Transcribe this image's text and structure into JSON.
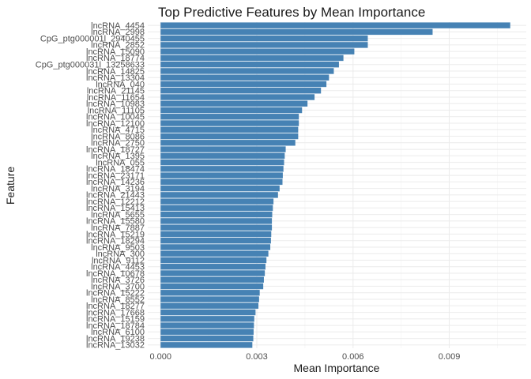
{
  "chart_data": {
    "type": "bar",
    "orientation": "horizontal",
    "title": "Top Predictive Features by Mean Importance",
    "xlabel": "Mean Importance",
    "ylabel": "Feature",
    "xlim": [
      -0.0004,
      0.0114
    ],
    "xticks": [
      0,
      0.003,
      0.006,
      0.009
    ],
    "xtick_labels": [
      "0.000",
      "0.003",
      "0.006",
      "0.009"
    ],
    "grid": true,
    "bar_color": "#4682B4",
    "categories": [
      "lncRNA_4454",
      "lncRNA_2998",
      "CpG_ptg000001l_2940455",
      "lncRNA_2852",
      "lncRNA_15090",
      "lncRNA_18774",
      "CpG_ptg000031l_13258633",
      "lncRNA_14825",
      "lncRNA_13304",
      "lncRNA_040",
      "lncRNA_21145",
      "lncRNA_11654",
      "lncRNA_10983",
      "lncRNA_11105",
      "lncRNA_10045",
      "lncRNA_12100",
      "lncRNA_4715",
      "lncRNA_8086",
      "lncRNA_2750",
      "lncRNA_18727",
      "lncRNA_1395",
      "lncRNA_055",
      "lncRNA_18474",
      "lncRNA_23171",
      "lncRNA_14236",
      "lncRNA_3194",
      "lncRNA_21443",
      "lncRNA_12212",
      "lncRNA_15413",
      "lncRNA_5655",
      "lncRNA_15580",
      "lncRNA_7887",
      "lncRNA_15219",
      "lncRNA_18294",
      "lncRNA_9503",
      "lncRNA_300",
      "lncRNA_9112",
      "lncRNA_4453",
      "lncRNA_10678",
      "lncRNA_3726",
      "lncRNA_3700",
      "lncRNA_15222",
      "lncRNA_8552",
      "lncRNA_18277",
      "lncRNA_17668",
      "lncRNA_15159",
      "lncRNA_18784",
      "lncRNA_6100",
      "lncRNA_19238",
      "lncRNA_13032"
    ],
    "values": [
      0.0109,
      0.00848,
      0.00646,
      0.00646,
      0.00604,
      0.0057,
      0.00556,
      0.0054,
      0.00525,
      0.00517,
      0.005,
      0.0048,
      0.00458,
      0.00441,
      0.00431,
      0.00431,
      0.00429,
      0.00429,
      0.0042,
      0.0039,
      0.00387,
      0.00385,
      0.00383,
      0.00381,
      0.0038,
      0.00371,
      0.00366,
      0.00352,
      0.0035,
      0.00348,
      0.00347,
      0.00347,
      0.00345,
      0.00344,
      0.00342,
      0.00336,
      0.0033,
      0.00327,
      0.00325,
      0.00322,
      0.0032,
      0.00309,
      0.00307,
      0.00305,
      0.00296,
      0.00292,
      0.00291,
      0.0029,
      0.00289,
      0.00286
    ]
  }
}
